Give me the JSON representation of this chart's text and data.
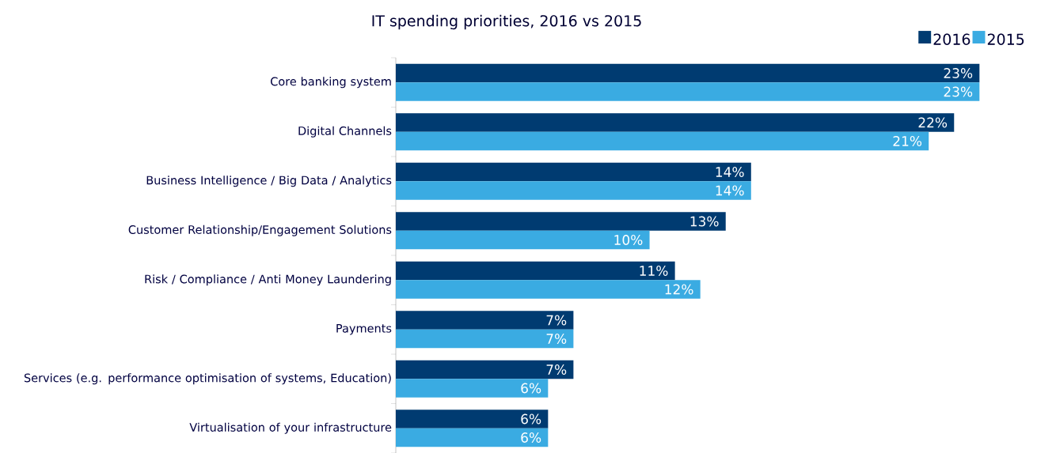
{
  "chart_data": {
    "type": "bar",
    "orientation": "horizontal",
    "title": "IT spending priorities, 2016 vs 2015",
    "legend": "top right",
    "tick_labels": "y",
    "categories": [
      "Core banking system",
      "Digital Channels",
      "Business Intelligence / Big Data / Analytics",
      "Customer Relationship/Engagement Solutions",
      "Risk / Compliance / Anti Money Laundering",
      "Payments",
      "Services (e.g. performance optimisation of systems, Education)",
      "Virtualisation of your infrastructure"
    ],
    "series": [
      {
        "name": "2016",
        "color": "#003b71",
        "values": [
          23,
          22,
          14,
          13,
          11,
          7,
          7,
          6
        ],
        "value_labels": [
          "23%",
          "22%",
          "14%",
          "13%",
          "11%",
          "7%",
          "7%",
          "6%"
        ]
      },
      {
        "name": "2015",
        "color": "#3aabe2",
        "values": [
          23,
          21,
          14,
          10,
          12,
          7,
          6,
          6
        ],
        "value_labels": [
          "23%",
          "21%",
          "14%",
          "10%",
          "12%",
          "7%",
          "6%",
          "6%"
        ]
      }
    ]
  }
}
